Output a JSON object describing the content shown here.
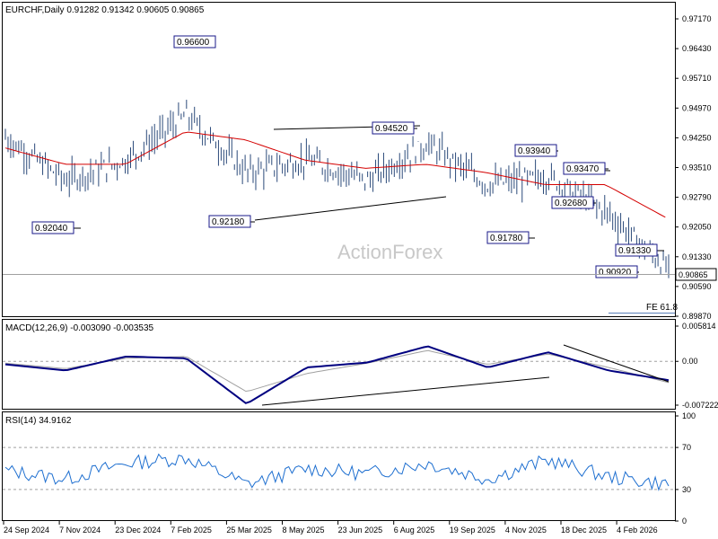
{
  "header": {
    "main": "EURCHF,Daily  0.91282 0.91342 0.90605 0.90865",
    "macd": "MACD(12,26,9) -0.003090 -0.003535",
    "rsi": "RSI(14) 34.9162"
  },
  "watermark": "ActionForex",
  "price_axis": {
    "ticks": [
      "0.97170",
      "0.96430",
      "0.95710",
      "0.94970",
      "0.94250",
      "0.93510",
      "0.92790",
      "0.92050",
      "0.91330",
      "0.90590",
      "0.89870"
    ],
    "current": "0.90865"
  },
  "macd_axis": {
    "ticks": [
      "0.005814",
      "0.00",
      "-0.007222"
    ]
  },
  "rsi_axis": {
    "ticks": [
      "100",
      "70",
      "30",
      "0"
    ]
  },
  "date_axis": [
    "24 Sep 2024",
    "7 Nov 2024",
    "23 Dec 2024",
    "7 Feb 2025",
    "25 Mar 2025",
    "8 May 2025",
    "23 Jun 2025",
    "6 Aug 2025",
    "19 Sep 2025",
    "4 Nov 2025",
    "18 Dec 2025",
    "4 Feb 2026"
  ],
  "price_labels": [
    "0.96600",
    "0.94520",
    "0.93940",
    "0.93470",
    "0.92680",
    "0.92180",
    "0.92040",
    "0.91780",
    "0.91330",
    "0.90920"
  ],
  "fe_label": "FE 61.8",
  "colors": {
    "bars": "#2b4a7a",
    "sma": "#d40000",
    "macd_line": "#000080",
    "signal_line": "#a0a0a0",
    "rsi_line": "#1e6fd0",
    "grid": "#a0a0a0"
  },
  "chart_data": [
    {
      "type": "line",
      "title": "EURCHF,Daily",
      "ohlc": {
        "open": 0.91282,
        "high": 0.91342,
        "low": 0.90605,
        "close": 0.90865
      },
      "x": [
        "24 Sep 2024",
        "7 Nov 2024",
        "23 Dec 2024",
        "7 Feb 2025",
        "25 Mar 2025",
        "8 May 2025",
        "23 Jun 2025",
        "6 Aug 2025",
        "19 Sep 2025",
        "4 Nov 2025",
        "18 Dec 2025",
        "4 Feb 2026"
      ],
      "series": [
        {
          "values": [
            0.9425,
            0.932,
            0.937,
            0.948,
            0.934,
            0.937,
            0.932,
            0.941,
            0.931,
            0.933,
            0.924,
            0.91
          ]
        },
        {
          "values": [
            0.94,
            0.936,
            0.936,
            0.944,
            0.942,
            0.937,
            0.935,
            0.936,
            0.934,
            0.931,
            0.931,
            0.923
          ]
        }
      ],
      "ylim": [
        0.8987,
        0.9717
      ]
    },
    {
      "type": "line",
      "title": "MACD(12,26,9)",
      "x": [
        "24 Sep 2024",
        "7 Nov 2024",
        "23 Dec 2024",
        "7 Feb 2025",
        "25 Mar 2025",
        "8 May 2025",
        "23 Jun 2025",
        "6 Aug 2025",
        "19 Sep 2025",
        "4 Nov 2025",
        "18 Dec 2025",
        "4 Feb 2026"
      ],
      "series": [
        {
          "values": [
            -0.0005,
            -0.0015,
            0.0008,
            0.0005,
            -0.007,
            -0.001,
            -0.0002,
            0.0025,
            -0.001,
            0.0015,
            -0.0015,
            -0.0031
          ]
        },
        {
          "values": [
            -0.0003,
            -0.0012,
            0.0005,
            0.0008,
            -0.005,
            -0.002,
            -0.0003,
            0.0018,
            -0.0005,
            0.0012,
            -0.001,
            -0.0035
          ]
        }
      ],
      "ylim": [
        -0.007222,
        0.005814
      ]
    },
    {
      "type": "line",
      "title": "RSI(14)",
      "x": [
        "24 Sep 2024",
        "7 Nov 2024",
        "23 Dec 2024",
        "7 Feb 2025",
        "25 Mar 2025",
        "8 May 2025",
        "23 Jun 2025",
        "6 Aug 2025",
        "19 Sep 2025",
        "4 Nov 2025",
        "18 Dec 2025",
        "4 Feb 2026"
      ],
      "series": [
        {
          "values": [
            48,
            40,
            55,
            60,
            35,
            50,
            45,
            55,
            40,
            58,
            42,
            35
          ]
        }
      ],
      "ylim": [
        0,
        100
      ]
    }
  ]
}
